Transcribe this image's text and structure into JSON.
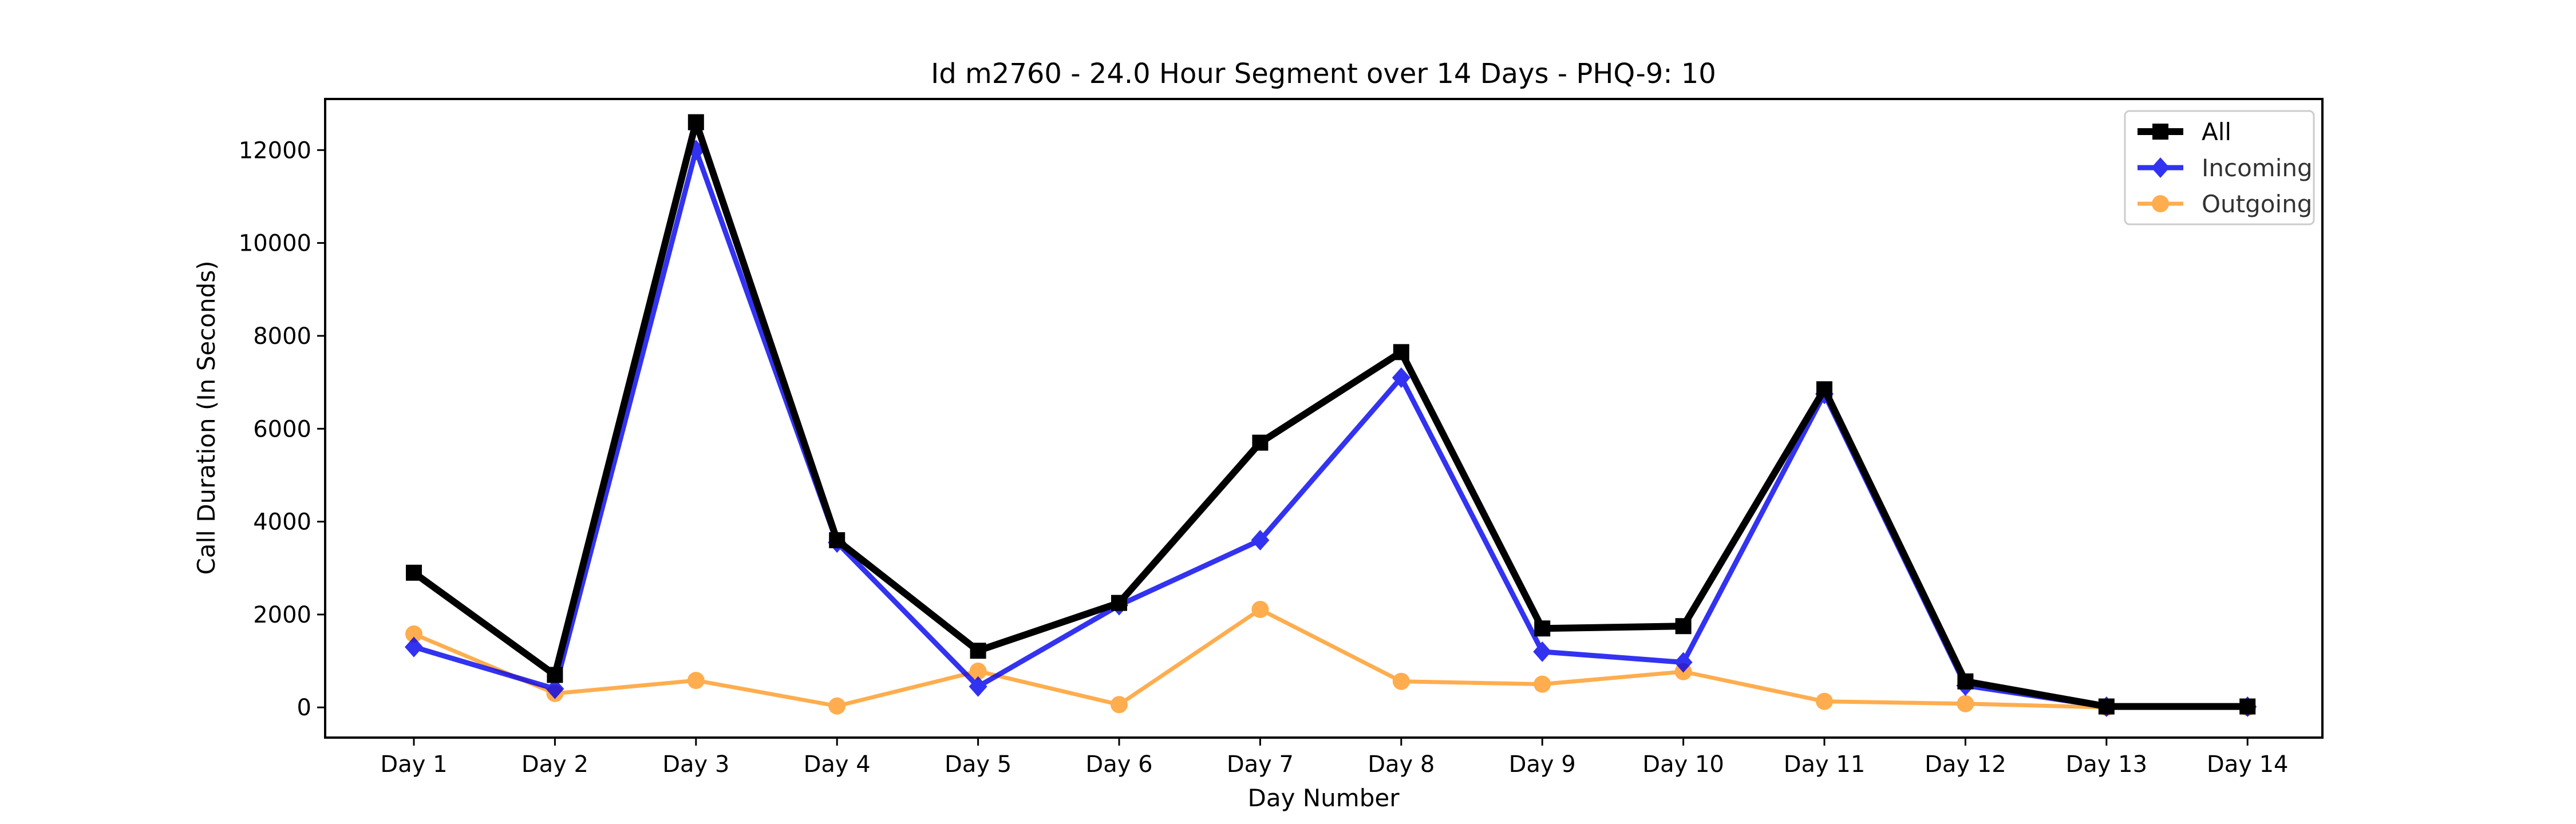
{
  "chart_data": {
    "type": "line",
    "title": "Id m2760 - 24.0 Hour Segment over 14 Days - PHQ-9: 10",
    "xlabel": "Day Number",
    "ylabel": "Call Duration (In Seconds)",
    "categories": [
      "Day 1",
      "Day 2",
      "Day 3",
      "Day 4",
      "Day 5",
      "Day 6",
      "Day 7",
      "Day 8",
      "Day 9",
      "Day 10",
      "Day 11",
      "Day 12",
      "Day 13",
      "Day 14"
    ],
    "ylim": [
      -650,
      13100
    ],
    "yticks": [
      0,
      2000,
      4000,
      6000,
      8000,
      10000,
      12000
    ],
    "grid": false,
    "legend_position": "top-right",
    "series": [
      {
        "name": "All",
        "color": "#000000",
        "marker": "square",
        "values": [
          2900,
          700,
          12600,
          3600,
          1220,
          2250,
          5700,
          7650,
          1700,
          1750,
          6850,
          560,
          20,
          20
        ]
      },
      {
        "name": "Incoming",
        "color": "#0000ee",
        "marker": "diamond",
        "values": [
          1300,
          400,
          12000,
          3550,
          450,
          2200,
          3600,
          7100,
          1200,
          970,
          6750,
          470,
          15,
          15
        ]
      },
      {
        "name": "Outgoing",
        "color": "#ff9922",
        "marker": "circle",
        "values": [
          1580,
          300,
          580,
          30,
          780,
          60,
          2110,
          560,
          500,
          770,
          130,
          80,
          0,
          0
        ]
      }
    ]
  }
}
